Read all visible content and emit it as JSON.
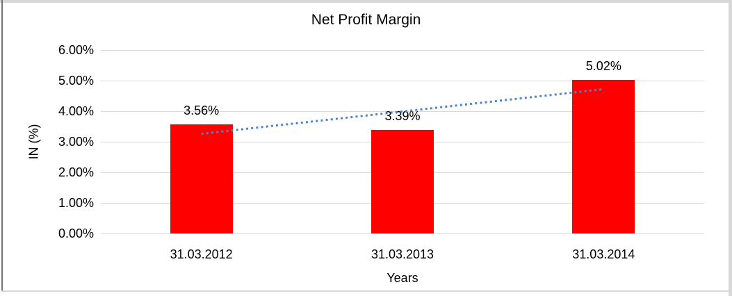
{
  "chart_data": {
    "type": "bar",
    "title": "Net Profit Margin",
    "xlabel": "Years",
    "ylabel": "IN (%)",
    "categories": [
      "31.03.2012",
      "31.03.2013",
      "31.03.2014"
    ],
    "values": [
      3.56,
      3.39,
      5.02
    ],
    "data_labels": [
      "3.56%",
      "3.39%",
      "5.02%"
    ],
    "ylim": [
      0,
      6
    ],
    "ytick_interval": 1,
    "ytick_labels": [
      "0.00%",
      "1.00%",
      "2.00%",
      "3.00%",
      "4.00%",
      "5.00%",
      "6.00%"
    ],
    "grid": true,
    "legend": "none",
    "bar_color": "#FF0000",
    "trendline": {
      "type": "linear",
      "style": "dotted",
      "color": "#4A86C8",
      "start_value": 3.26,
      "end_value": 4.72
    },
    "colors": {
      "gridline": "#D9D9D9",
      "text": "#000000",
      "background": "#FFFFFF",
      "frame_light": "#D7D7D7",
      "frame_dark": "#757575"
    }
  }
}
